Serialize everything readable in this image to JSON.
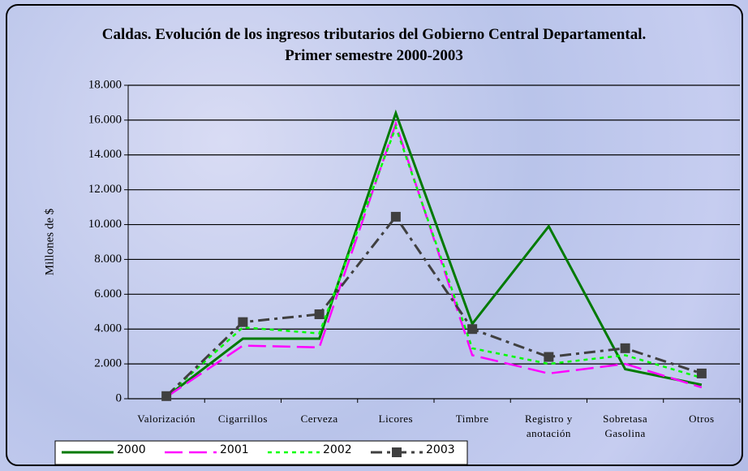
{
  "chart_data": {
    "type": "line",
    "title": "Caldas. Evolución de los ingresos tributarios del Gobierno Central Departamental. Primer semestre 2000-2003",
    "y_label": "Millones de $",
    "categories": [
      "Valorización",
      "Cigarrillos",
      "Cerveza",
      "Licores",
      "Timbre",
      "Registro y anotación",
      "Sobretasa Gasolina",
      "Otros"
    ],
    "series": [
      {
        "name": "2000",
        "color": "#007a00",
        "values": [
          100,
          3450,
          3450,
          16400,
          4300,
          9900,
          1700,
          800
        ]
      },
      {
        "name": "2001",
        "color": "#ff00ff",
        "values": [
          100,
          3050,
          2950,
          15800,
          2500,
          1450,
          2000,
          650
        ]
      },
      {
        "name": "2002",
        "color": "#00ff00",
        "values": [
          150,
          4100,
          3750,
          15600,
          2900,
          2000,
          2500,
          1200
        ]
      },
      {
        "name": "2003",
        "color": "#404040",
        "values": [
          150,
          4400,
          4850,
          10450,
          4000,
          2400,
          2900,
          1450
        ]
      }
    ],
    "ylim": [
      0,
      18000
    ],
    "yticks": [
      0,
      {
        "value": 2000,
        "label": "2.000"
      },
      {
        "value": 4000,
        "label": "4.000"
      },
      {
        "value": 6000,
        "label": "6.000"
      },
      {
        "value": 8000,
        "label": "8.000"
      },
      {
        "value": 10000,
        "label": "10.000"
      },
      {
        "value": 12000,
        "label": "12.000"
      },
      {
        "value": 14000,
        "label": "14.000"
      },
      {
        "value": 16000,
        "label": "16.000"
      },
      {
        "value": 18000,
        "label": "18.000"
      }
    ],
    "grid": true
  }
}
